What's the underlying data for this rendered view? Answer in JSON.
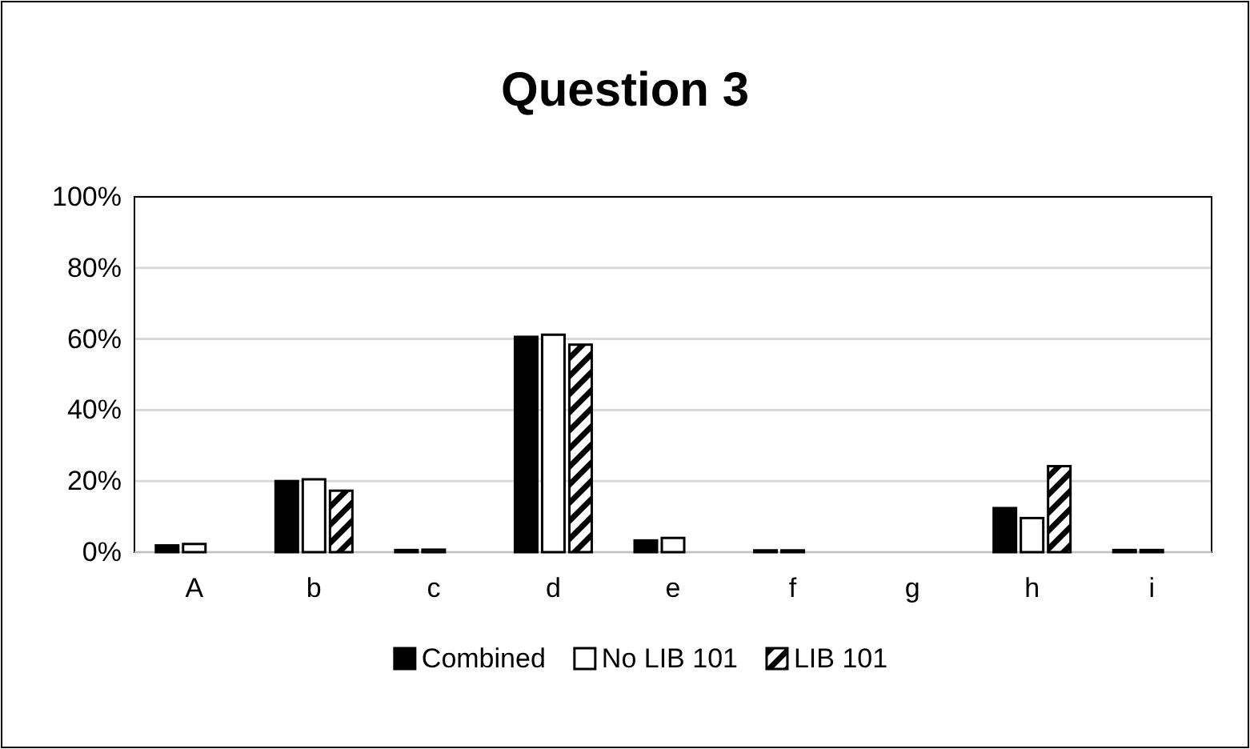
{
  "chart_data": {
    "type": "bar",
    "title": "Question 3",
    "categories": [
      "A",
      "b",
      "c",
      "d",
      "e",
      "f",
      "g",
      "h",
      "i"
    ],
    "series": [
      {
        "name": "Combined",
        "color": "#000000",
        "values": [
          1.9,
          20,
          0.6,
          60.6,
          3.3,
          0.5,
          0,
          12.4,
          0.6
        ]
      },
      {
        "name": "No LIB 101",
        "color": "#ffffff",
        "values": [
          2.3,
          20.5,
          0.7,
          61.2,
          4,
          0.5,
          0,
          9.6,
          0.6
        ]
      },
      {
        "name": "LIB 101",
        "color": "#000000",
        "values": [
          0,
          17.3,
          0,
          58.4,
          0,
          0,
          0,
          24.2,
          0
        ]
      }
    ],
    "ylim": [
      0,
      100
    ],
    "yticks": [
      {
        "value": 0,
        "label": "0%"
      },
      {
        "value": 20,
        "label": "20%"
      },
      {
        "value": 40,
        "label": "40%"
      },
      {
        "value": 60,
        "label": "60%"
      },
      {
        "value": 80,
        "label": "80%"
      },
      {
        "value": 100,
        "label": "100%"
      }
    ],
    "grid": "y",
    "legend": "bottom"
  }
}
